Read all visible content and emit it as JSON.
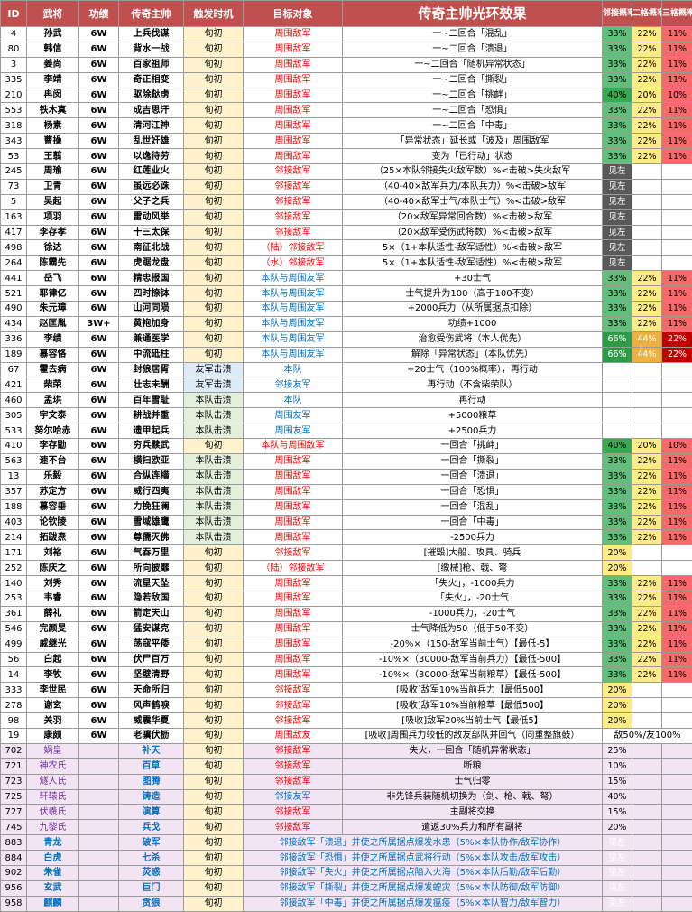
{
  "headers": {
    "id": "ID",
    "name": "武将",
    "work": "功绩",
    "title": "传奇主帅",
    "trigger": "触发时机",
    "target": "目标对象",
    "effect": "传奇主帅光环效果",
    "p1": "邻接概率",
    "p2": "二格概率",
    "p3": "三格概率"
  },
  "rows": [
    {
      "id": "4",
      "name": "孙武",
      "work": "6W",
      "title": "上兵伐谋",
      "trigger": "旬初",
      "target": "周围敌军",
      "effect": "一~二回合「混乱」",
      "p1": "33%",
      "p2": "22%",
      "p3": "11%"
    },
    {
      "id": "80",
      "name": "韩信",
      "work": "6W",
      "title": "背水一战",
      "trigger": "旬初",
      "target": "周围敌军",
      "effect": "一~二回合「溃退」",
      "p1": "33%",
      "p2": "22%",
      "p3": "11%"
    },
    {
      "id": "3",
      "name": "姜尚",
      "work": "6W",
      "title": "百家祖师",
      "trigger": "旬初",
      "target": "周围敌军",
      "effect": "一~二回合「随机异常状态」",
      "p1": "33%",
      "p2": "22%",
      "p3": "11%"
    },
    {
      "id": "335",
      "name": "李靖",
      "work": "6W",
      "title": "奇正相变",
      "trigger": "旬初",
      "target": "周围敌军",
      "effect": "一~二回合「撕裂」",
      "p1": "33%",
      "p2": "22%",
      "p3": "11%"
    },
    {
      "id": "210",
      "name": "冉闵",
      "work": "6W",
      "title": "驱除鞑虏",
      "trigger": "旬初",
      "target": "周围敌军",
      "effect": "一~二回合「挑衅」",
      "p1": "40%",
      "p2": "20%",
      "p3": "10%"
    },
    {
      "id": "553",
      "name": "铁木真",
      "work": "6W",
      "title": "成吉思汗",
      "trigger": "旬初",
      "target": "周围敌军",
      "effect": "一~二回合「恐惧」",
      "p1": "33%",
      "p2": "22%",
      "p3": "11%"
    },
    {
      "id": "318",
      "name": "杨素",
      "work": "6W",
      "title": "清河江神",
      "trigger": "旬初",
      "target": "周围敌军",
      "effect": "一~二回合「中毒」",
      "p1": "33%",
      "p2": "22%",
      "p3": "11%"
    },
    {
      "id": "343",
      "name": "曹操",
      "work": "6W",
      "title": "乱世奸雄",
      "trigger": "旬初",
      "target": "周围敌军",
      "effect": "「异常状态」延长或「波及」周围敌军",
      "p1": "33%",
      "p2": "22%",
      "p3": "11%"
    },
    {
      "id": "53",
      "name": "王翦",
      "work": "6W",
      "title": "以逸待劳",
      "trigger": "旬初",
      "target": "周围敌军",
      "effect": "变为「已行动」状态",
      "p1": "33%",
      "p2": "22%",
      "p3": "11%"
    },
    {
      "id": "245",
      "name": "周瑜",
      "work": "6W",
      "title": "红莲业火",
      "trigger": "旬初",
      "target": "邻接敌军",
      "effect": "（25×本队邻接失火敌军数）%<击破>失火敌军",
      "p1": "见左",
      "p2": "",
      "p3": ""
    },
    {
      "id": "73",
      "name": "卫青",
      "work": "6W",
      "title": "虽远必诛",
      "trigger": "旬初",
      "target": "邻接敌军",
      "effect": "（40-40×敌军兵力/本队兵力）%<击破>敌军",
      "p1": "见左",
      "p2": "",
      "p3": ""
    },
    {
      "id": "5",
      "name": "吴起",
      "work": "6W",
      "title": "父子之兵",
      "trigger": "旬初",
      "target": "邻接敌军",
      "effect": "（40-40×敌军士气/本队士气）%<击破>敌军",
      "p1": "见左",
      "p2": "",
      "p3": ""
    },
    {
      "id": "163",
      "name": "项羽",
      "work": "6W",
      "title": "雷动风举",
      "trigger": "旬初",
      "target": "邻接敌军",
      "effect": "（20×敌军异常回合数）%<击破>敌军",
      "p1": "见左",
      "p2": "",
      "p3": ""
    },
    {
      "id": "417",
      "name": "李存孝",
      "work": "6W",
      "title": "十三太保",
      "trigger": "旬初",
      "target": "邻接敌军",
      "effect": "（20×敌军受伤武将数）%<击破>敌军",
      "p1": "见左",
      "p2": "",
      "p3": ""
    },
    {
      "id": "498",
      "name": "徐达",
      "work": "6W",
      "title": "南征北战",
      "trigger": "旬初",
      "target": "（陆）邻接敌军",
      "effect": "5×（1+本队适性-敌军适性）%<击破>敌军",
      "p1": "见左",
      "p2": "",
      "p3": ""
    },
    {
      "id": "264",
      "name": "陈霸先",
      "work": "6W",
      "title": "虎踞龙盘",
      "trigger": "旬初",
      "target": "（水）邻接敌军",
      "effect": "5×（1+本队适性-敌军适性）%<击破>敌军",
      "p1": "见左",
      "p2": "",
      "p3": ""
    },
    {
      "id": "441",
      "name": "岳飞",
      "work": "6W",
      "title": "精忠报国",
      "trigger": "旬初",
      "target": "本队与周围友军",
      "effect": "+30士气",
      "p1": "33%",
      "p2": "22%",
      "p3": "11%"
    },
    {
      "id": "521",
      "name": "耶律亿",
      "work": "6W",
      "title": "四时捺钵",
      "trigger": "旬初",
      "target": "本队与周围友军",
      "effect": "士气提升为100（高于100不变）",
      "p1": "33%",
      "p2": "22%",
      "p3": "11%"
    },
    {
      "id": "490",
      "name": "朱元璋",
      "work": "6W",
      "title": "山河同陨",
      "trigger": "旬初",
      "target": "本队与周围友军",
      "effect": "+2000兵力（从所属据点扣除）",
      "p1": "33%",
      "p2": "22%",
      "p3": "11%"
    },
    {
      "id": "434",
      "name": "赵匡胤",
      "work": "3W+",
      "title": "黄袍加身",
      "trigger": "旬初",
      "target": "本队与周围友军",
      "effect": "功绩+1000",
      "p1": "33%",
      "p2": "22%",
      "p3": "11%"
    },
    {
      "id": "336",
      "name": "李绩",
      "work": "6W",
      "title": "兼通医学",
      "trigger": "旬初",
      "target": "本队与周围友军",
      "effect": "治愈受伤武将（本人优先）",
      "p1": "66%",
      "p2": "44%",
      "p3": "22%"
    },
    {
      "id": "189",
      "name": "慕容恪",
      "work": "6W",
      "title": "中流砥柱",
      "trigger": "旬初",
      "target": "本队与周围友军",
      "effect": "解除「异常状态」（本队优先）",
      "p1": "66%",
      "p2": "44%",
      "p3": "22%"
    },
    {
      "id": "67",
      "name": "霍去病",
      "work": "6W",
      "title": "封狼居胥",
      "trigger": "友军击溃",
      "target": "本队",
      "effect": "+20士气（100%概率），再行动",
      "p1": "",
      "p2": "",
      "p3": ""
    },
    {
      "id": "421",
      "name": "柴荣",
      "work": "6W",
      "title": "壮志未酬",
      "trigger": "友军击溃",
      "target": "邻接友军",
      "effect": "再行动（不含柴荣队）",
      "p1": "",
      "p2": "",
      "p3": ""
    },
    {
      "id": "460",
      "name": "孟珙",
      "work": "6W",
      "title": "百年雪耻",
      "trigger": "本队击溃",
      "target": "本队",
      "effect": "再行动",
      "p1": "",
      "p2": "",
      "p3": ""
    },
    {
      "id": "305",
      "name": "宇文泰",
      "work": "6W",
      "title": "耕战并重",
      "trigger": "本队击溃",
      "target": "周围友军",
      "effect": "+5000粮草",
      "p1": "",
      "p2": "",
      "p3": ""
    },
    {
      "id": "533",
      "name": "努尔哈赤",
      "work": "6W",
      "title": "遗甲起兵",
      "trigger": "本队击溃",
      "target": "周围友军",
      "effect": "+2500兵力",
      "p1": "",
      "p2": "",
      "p3": ""
    },
    {
      "id": "410",
      "name": "李存勖",
      "work": "6W",
      "title": "穷兵黩武",
      "trigger": "旬初",
      "target": "本队与周围敌军",
      "effect": "一回合「挑衅」",
      "p1": "40%",
      "p2": "20%",
      "p3": "10%"
    },
    {
      "id": "563",
      "name": "速不台",
      "work": "6W",
      "title": "横扫欧亚",
      "trigger": "本队击溃",
      "target": "周围敌军",
      "effect": "一回合「撕裂」",
      "p1": "33%",
      "p2": "22%",
      "p3": "11%"
    },
    {
      "id": "13",
      "name": "乐毅",
      "work": "6W",
      "title": "合纵连横",
      "trigger": "本队击溃",
      "target": "周围敌军",
      "effect": "一回合「溃退」",
      "p1": "33%",
      "p2": "22%",
      "p3": "11%"
    },
    {
      "id": "357",
      "name": "苏定方",
      "work": "6W",
      "title": "威行四夷",
      "trigger": "本队击溃",
      "target": "周围敌军",
      "effect": "一回合「恐惧」",
      "p1": "33%",
      "p2": "22%",
      "p3": "11%"
    },
    {
      "id": "188",
      "name": "慕容垂",
      "work": "6W",
      "title": "力挽狂澜",
      "trigger": "本队击溃",
      "target": "周围敌军",
      "effect": "一回合「混乱」",
      "p1": "33%",
      "p2": "22%",
      "p3": "11%"
    },
    {
      "id": "403",
      "name": "论钦陵",
      "work": "6W",
      "title": "雪域雄鹰",
      "trigger": "本队击溃",
      "target": "周围敌军",
      "effect": "一回合「中毒」",
      "p1": "33%",
      "p2": "22%",
      "p3": "11%"
    },
    {
      "id": "214",
      "name": "拓跋焘",
      "work": "6W",
      "title": "尊儒灭佛",
      "trigger": "本队击溃",
      "target": "周围敌军",
      "effect": "-2500兵力",
      "p1": "33%",
      "p2": "22%",
      "p3": "11%"
    },
    {
      "id": "171",
      "name": "刘裕",
      "work": "6W",
      "title": "气吞万里",
      "trigger": "旬初",
      "target": "邻接敌军",
      "effect": "[摧毁]大船、攻具、骑兵",
      "p1": "20%",
      "p2": "",
      "p3": ""
    },
    {
      "id": "252",
      "name": "陈庆之",
      "work": "6W",
      "title": "所向披靡",
      "trigger": "旬初",
      "target": "（陆）邻接敌军",
      "effect": "[缴械]枪、戟、弩",
      "p1": "20%",
      "p2": "",
      "p3": ""
    },
    {
      "id": "140",
      "name": "刘秀",
      "work": "6W",
      "title": "流星天坠",
      "trigger": "旬初",
      "target": "周围敌军",
      "effect": "「失火」，-1000兵力",
      "p1": "33%",
      "p2": "22%",
      "p3": "11%"
    },
    {
      "id": "253",
      "name": "韦睿",
      "work": "6W",
      "title": "隐若敌国",
      "trigger": "旬初",
      "target": "周围敌军",
      "effect": "「失火」，-20士气",
      "p1": "33%",
      "p2": "22%",
      "p3": "11%"
    },
    {
      "id": "361",
      "name": "薛礼",
      "work": "6W",
      "title": "箭定天山",
      "trigger": "旬初",
      "target": "周围敌军",
      "effect": "-1000兵力，-20士气",
      "p1": "33%",
      "p2": "22%",
      "p3": "11%"
    },
    {
      "id": "546",
      "name": "完颜旻",
      "work": "6W",
      "title": "猛安谋克",
      "trigger": "旬初",
      "target": "周围敌军",
      "effect": "士气降低为50（低于50不变）",
      "p1": "33%",
      "p2": "22%",
      "p3": "11%"
    },
    {
      "id": "499",
      "name": "戚继光",
      "work": "6W",
      "title": "荡寇平倭",
      "trigger": "旬初",
      "target": "周围敌军",
      "effect": "-20%×（150-敌军当前士气）【最低-5】",
      "p1": "33%",
      "p2": "22%",
      "p3": "11%"
    },
    {
      "id": "56",
      "name": "白起",
      "work": "6W",
      "title": "伏尸百万",
      "trigger": "旬初",
      "target": "周围敌军",
      "effect": "-10%×（30000-敌军当前兵力）【最低-500】",
      "p1": "33%",
      "p2": "22%",
      "p3": "11%"
    },
    {
      "id": "14",
      "name": "李牧",
      "work": "6W",
      "title": "坚壁清野",
      "trigger": "旬初",
      "target": "周围敌军",
      "effect": "-10%×（30000-敌军当前粮草）【最低-500】",
      "p1": "33%",
      "p2": "22%",
      "p3": "11%"
    },
    {
      "id": "333",
      "name": "李世民",
      "work": "6W",
      "title": "天命所归",
      "trigger": "旬初",
      "target": "邻接敌军",
      "effect": "[吸收]敌军10%当前兵力【最低500】",
      "p1": "20%",
      "p2": "",
      "p3": ""
    },
    {
      "id": "278",
      "name": "谢玄",
      "work": "6W",
      "title": "风声鹤唳",
      "trigger": "旬初",
      "target": "邻接敌军",
      "effect": "[吸收]敌军10%当前粮草【最低500】",
      "p1": "20%",
      "p2": "",
      "p3": ""
    },
    {
      "id": "98",
      "name": "关羽",
      "work": "6W",
      "title": "威震华夏",
      "trigger": "旬初",
      "target": "邻接敌军",
      "effect": "[吸收]敌军20%当前士气【最低5】",
      "p1": "20%",
      "p2": "",
      "p3": ""
    },
    {
      "id": "19",
      "name": "康颇",
      "work": "6W",
      "title": "老骥伏枥",
      "trigger": "旬初",
      "target": "周围敌友",
      "effect": "[吸收]周围兵力较低的敌友部队并回气（同重整旗鼓）",
      "p1": "敌50%/友100%",
      "p2": "",
      "p3": ""
    },
    {
      "id": "702",
      "name": "娲皇",
      "work": "",
      "title": "补天",
      "trigger": "旬初",
      "target": "邻接敌军",
      "effect": "失火，一回合「随机异常状态」",
      "p1": "25%",
      "p2": "",
      "p3": ""
    },
    {
      "id": "721",
      "name": "神农氏",
      "work": "",
      "title": "百草",
      "trigger": "旬初",
      "target": "邻接敌军",
      "effect": "断粮",
      "p1": "10%",
      "p2": "",
      "p3": ""
    },
    {
      "id": "723",
      "name": "燧人氏",
      "work": "",
      "title": "图腾",
      "trigger": "旬初",
      "target": "邻接敌军",
      "effect": "士气归零",
      "p1": "15%",
      "p2": "",
      "p3": ""
    },
    {
      "id": "725",
      "name": "轩辕氏",
      "work": "",
      "title": "铸造",
      "trigger": "旬初",
      "target": "邻接友军",
      "effect": "非先锋兵装随机切换为（剑、枪、戟、弩）",
      "p1": "40%",
      "p2": "",
      "p3": ""
    },
    {
      "id": "727",
      "name": "伏羲氏",
      "work": "",
      "title": "演算",
      "trigger": "旬初",
      "target": "邻接敌军",
      "effect": "主副将交换",
      "p1": "15%",
      "p2": "",
      "p3": ""
    },
    {
      "id": "745",
      "name": "九黎氏",
      "work": "",
      "title": "兵戈",
      "trigger": "旬初",
      "target": "邻接敌军",
      "effect": "遣返30%兵力和所有副将",
      "p1": "20%",
      "p2": "",
      "p3": ""
    },
    {
      "id": "883",
      "name": "青龙",
      "work": "",
      "title": "破军",
      "trigger": "旬初",
      "target": "",
      "effect": "邻接敌军「溃退」并使之所属据点爆发水患（5%×本队协作/敌军协作）",
      "p1": "见左",
      "p2": "",
      "p3": ""
    },
    {
      "id": "884",
      "name": "白虎",
      "work": "",
      "title": "七杀",
      "trigger": "旬初",
      "target": "",
      "effect": "邻接敌军「恐惧」并使之所属据点武将行动（5%×本队攻击/敌军攻击）",
      "p1": "见左",
      "p2": "",
      "p3": ""
    },
    {
      "id": "902",
      "name": "朱雀",
      "work": "",
      "title": "荧惑",
      "trigger": "旬初",
      "target": "",
      "effect": "邻接敌军「失火」并使之所属据点陷入火海（5%×本队后勤/敌军后勤）",
      "p1": "见左",
      "p2": "",
      "p3": ""
    },
    {
      "id": "956",
      "name": "玄武",
      "work": "",
      "title": "巨门",
      "trigger": "旬初",
      "target": "",
      "effect": "邻接敌军「撕裂」并使之所属据点爆发蝗灾（5%×本队防御/敌军防御）",
      "p1": "见左",
      "p2": "",
      "p3": ""
    },
    {
      "id": "958",
      "name": "麒麟",
      "work": "",
      "title": "贪狼",
      "trigger": "旬初",
      "target": "",
      "effect": "邻接敌军「中毒」并使之所属据点爆发瘟疫（5%×本队智力/敌军智力）",
      "p1": "见左",
      "p2": "",
      "p3": ""
    }
  ],
  "colors": {
    "header": "#c0504d",
    "green": "#63be7b",
    "yellow": "#ffeb84",
    "red": "#f8696b",
    "gray": "#595959"
  }
}
